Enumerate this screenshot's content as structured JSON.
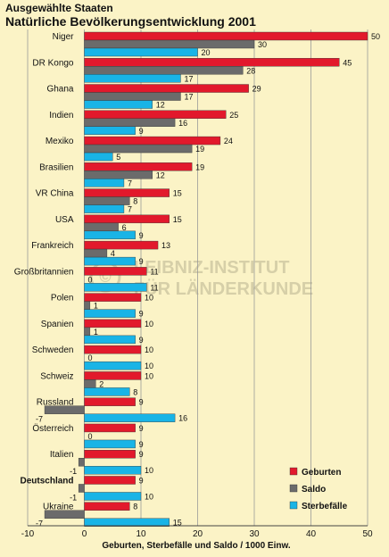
{
  "header": {
    "subtitle": "Ausgewählte Staaten",
    "title": "Natürliche Bevölkerungsentwicklung 2001"
  },
  "watermark": {
    "line1": "LEIBNIZ-INSTITUT",
    "line2": "FÜR LÄNDERKUNDE",
    "mark": "©"
  },
  "colors": {
    "background": "#fbf3c6",
    "geburten": "#e2192c",
    "saldo": "#6b6b6b",
    "sterbefaelle": "#19b4e6",
    "grid": "#9a9a9a"
  },
  "chart_data": {
    "type": "bar",
    "orientation": "horizontal",
    "categories": [
      "Niger",
      "DR Kongo",
      "Ghana",
      "Indien",
      "Mexiko",
      "Brasilien",
      "VR China",
      "USA",
      "Frankreich",
      "Großbritannien",
      "Polen",
      "Spanien",
      "Schweden",
      "Schweiz",
      "Russland",
      "Österreich",
      "Italien",
      "Deutschland",
      "Ukraine"
    ],
    "bold_categories": [
      "Deutschland"
    ],
    "series": [
      {
        "name": "Geburten",
        "color": "#e2192c",
        "values": [
          50,
          45,
          29,
          25,
          24,
          19,
          15,
          15,
          13,
          11,
          10,
          10,
          10,
          10,
          9,
          9,
          9,
          9,
          8
        ]
      },
      {
        "name": "Saldo",
        "color": "#6b6b6b",
        "values": [
          30,
          28,
          17,
          16,
          19,
          12,
          8,
          6,
          4,
          0,
          1,
          1,
          0,
          2,
          -7,
          0,
          -1,
          -1,
          -7
        ]
      },
      {
        "name": "Sterbefälle",
        "color": "#19b4e6",
        "values": [
          20,
          17,
          12,
          9,
          5,
          7,
          7,
          9,
          9,
          11,
          9,
          9,
          10,
          8,
          16,
          9,
          10,
          10,
          15
        ]
      }
    ],
    "xlim": [
      -10,
      50
    ],
    "xticks": [
      "-10",
      "0",
      "10",
      "20",
      "30",
      "40",
      "50"
    ],
    "xlabel": "Geburten, Sterbefälle und Saldo / 1000 Einw.",
    "grid": true,
    "legend_position": "bottom-right"
  }
}
